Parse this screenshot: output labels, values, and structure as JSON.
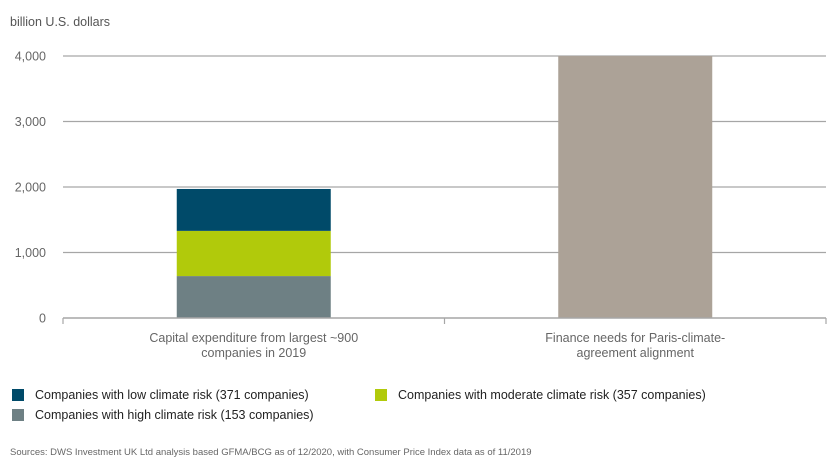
{
  "chart_data": {
    "type": "bar",
    "stacked": true,
    "title": "",
    "ylabel": "billion U.S. dollars",
    "xlabel": "",
    "ylim": [
      0,
      4000
    ],
    "yticks": [
      0,
      1000,
      2000,
      3000,
      4000
    ],
    "ytick_labels": [
      "0",
      "1,000",
      "2,000",
      "3,000",
      "4,000"
    ],
    "grid": true,
    "categories": [
      [
        "Capital expenditure from largest ~900",
        "companies in 2019"
      ],
      [
        "Finance needs for Paris-climate-",
        "agreement alignment"
      ]
    ],
    "series": [
      {
        "name": "Companies with high climate risk (153 companies)",
        "color": "#6e8084",
        "values": [
          640,
          0
        ]
      },
      {
        "name": "Companies with moderate climate risk (357 companies)",
        "color": "#b1ca0b",
        "values": [
          690,
          0
        ]
      },
      {
        "name": "Companies with low climate risk (371 companies)",
        "color": "#004a69",
        "values": [
          640,
          0
        ]
      },
      {
        "name": "Finance needs",
        "color": "#aca297",
        "values": [
          0,
          4000
        ],
        "in_legend": false
      }
    ],
    "legend": [
      {
        "label": "Companies with low climate risk (371 companies)",
        "color": "#004a69"
      },
      {
        "label": "Companies with moderate climate risk (357 companies)",
        "color": "#b1ca0b"
      },
      {
        "label": "Companies with high climate risk (153 companies)",
        "color": "#6e8084"
      }
    ],
    "legend_position": "bottom",
    "source": "Sources: DWS Investment UK Ltd analysis based GFMA/BCG as of 12/2020, with Consumer Price Index data as of 11/2019"
  }
}
